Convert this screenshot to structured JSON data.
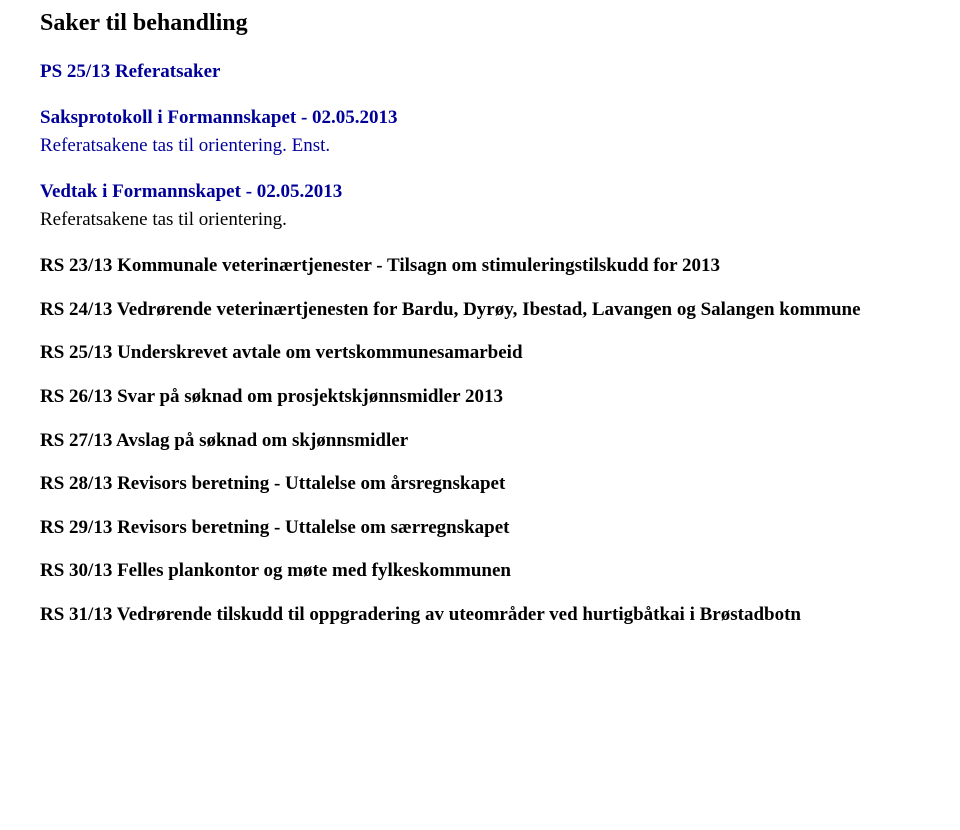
{
  "title": "Saker til behandling",
  "ps_line": "PS 25/13 Referatsaker",
  "section_heading": "Saksprotokoll i Formannskapet - 02.05.2013",
  "referat_1": "Referatsakene tas til orientering. Enst.",
  "vedtak_heading": "Vedtak i Formannskapet - 02.05.2013",
  "referat_2": "Referatsakene tas til orientering.",
  "rs_items": [
    "RS 23/13 Kommunale veterinærtjenester - Tilsagn om stimuleringstilskudd for 2013",
    "RS 24/13 Vedrørende veterinærtjenesten for Bardu, Dyrøy, Ibestad, Lavangen og Salangen kommune",
    "RS 25/13 Underskrevet avtale om vertskommunesamarbeid",
    "RS 26/13 Svar på søknad om prosjektskjønnsmidler 2013",
    "RS 27/13 Avslag på søknad om skjønnsmidler",
    "RS 28/13 Revisors beretning - Uttalelse om årsregnskapet",
    "RS 29/13 Revisors beretning - Uttalelse om særregnskapet",
    "RS 30/13 Felles plankontor og møte med fylkeskommunen",
    "RS 31/13 Vedrørende tilskudd til oppgradering av uteområder ved hurtigbåtkai i Brøstadbotn"
  ],
  "colors": {
    "text_black": "#000000",
    "text_blue": "#000099",
    "background": "#ffffff"
  },
  "typography": {
    "title_fontsize": 24,
    "body_fontsize": 19,
    "font_family": "Times New Roman"
  }
}
